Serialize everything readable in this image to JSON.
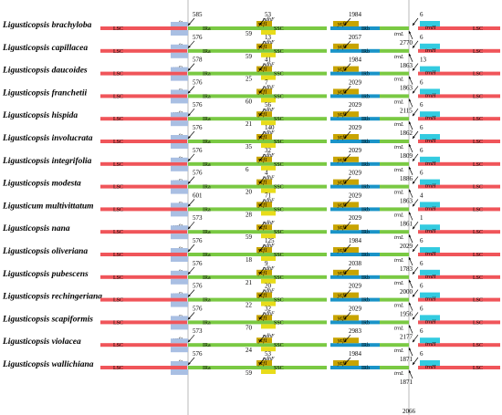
{
  "colors": {
    "LSC": "#f0555a",
    "IRa": "#7ac943",
    "SSC": "#7ac943",
    "IRb": "#7ac943",
    "trnH": "#33cbe0",
    "ycf1": "#c8a400",
    "ycf2": "#a9bfe3",
    "ndhF": "#e8dc1a",
    "blue_seg": "#1a94c8"
  },
  "labels": {
    "LSC": "LSC",
    "IRa": "IRa",
    "SSC": "SSC",
    "IRb": "IRb",
    "ycf2": "ycf2",
    "ycf1": "ycf1",
    "ndhF": "ndhF",
    "trnL": "trnL",
    "trnH": "trnH"
  },
  "species": [
    {
      "name": "Ligusticopsis brachyloba",
      "n1": "585",
      "n2": "59",
      "n3": "53",
      "n4": "1984",
      "n5": "2770",
      "n6": "6",
      "lsc_left": true
    },
    {
      "name": "Ligusticopsis capillacea",
      "n1": "576",
      "n2": "59",
      "n3": "13",
      "n4": "2057",
      "n5": "1863",
      "n6": "6",
      "lsc_left": true
    },
    {
      "name": "Ligusticopsis daucoides",
      "n1": "578",
      "n2": "25",
      "n3": "41",
      "n4": "1984",
      "n5": "1863",
      "n6": "13",
      "lsc_left": true
    },
    {
      "name": "Ligusticopsis franchetii",
      "n1": "576",
      "n2": "60",
      "n3": "7",
      "n4": "2029",
      "n5": "2115",
      "n6": "6",
      "lsc_left": true
    },
    {
      "name": "Ligusticopsis hispida",
      "n1": "576",
      "n2": "21",
      "n3": "56",
      "n4": "2029",
      "n5": "1862",
      "n6": "6",
      "lsc_left": false
    },
    {
      "name": "Ligusticopsis involucrata",
      "n1": "576",
      "n2": "35",
      "n3": "140",
      "n4": "2029",
      "n5": "1809",
      "n6": "6",
      "lsc_left": false
    },
    {
      "name": "Ligusticopsis integrifolia",
      "n1": "576",
      "n2": "6",
      "n3": "32",
      "n4": "2029",
      "n5": "1886",
      "n6": "6",
      "lsc_left": false
    },
    {
      "name": "Ligusticopsis modesta",
      "n1": "576",
      "n2": "20",
      "n3": "4",
      "n4": "2029",
      "n5": "1863",
      "n6": "6",
      "lsc_left": false
    },
    {
      "name": "Ligusticum multivittatum",
      "n1": "601",
      "n2": "28",
      "n3": "71",
      "n4": "2029",
      "n5": "1861",
      "n6": "4",
      "lsc_left": false
    },
    {
      "name": "Ligusticopsis nana",
      "n1": "573",
      "n2": "59",
      "n3": "",
      "n4": "2029",
      "n5": "2029",
      "n6": "1",
      "lsc_left": false
    },
    {
      "name": "Ligusticopsis oliveriana",
      "n1": "576",
      "n2": "18",
      "n3": "125",
      "n4": "1984",
      "n5": "1783",
      "n6": "6",
      "lsc_left": false
    },
    {
      "name": "Ligusticopsis pubescens",
      "n1": "576",
      "n2": "21",
      "n3": "9",
      "n4": "2038",
      "n5": "2000",
      "n6": "6",
      "lsc_left": false
    },
    {
      "name": "Ligusticopsis rechingeriana",
      "n1": "576",
      "n2": "22",
      "n3": "20",
      "n4": "2029",
      "n5": "1956",
      "n6": "6",
      "lsc_left": false
    },
    {
      "name": "Ligusticopsis scapiformis",
      "n1": "576",
      "n2": "70",
      "n3": "32",
      "n4": "2029",
      "n5": "2177",
      "n6": "6",
      "lsc_left": false
    },
    {
      "name": "Ligusticopsis violacea",
      "n1": "573",
      "n2": "24",
      "n3": "",
      "n4": "2983",
      "n5": "1871",
      "n6": "6",
      "lsc_left": false
    },
    {
      "name": "Ligusticopsis wallichiana",
      "n1": "576",
      "n2": "59",
      "n3": "53",
      "n4": "1984",
      "n5": "1871",
      "n6": "6",
      "lsc_left": true
    }
  ],
  "footer_number": "2066"
}
